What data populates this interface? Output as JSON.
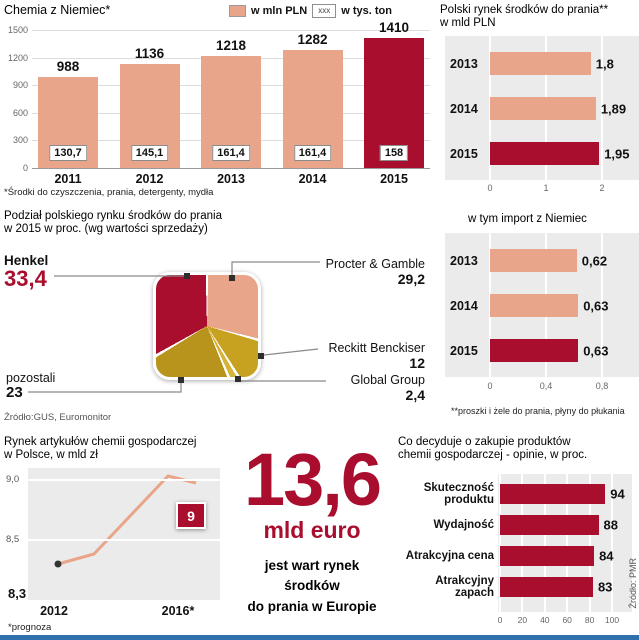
{
  "colors": {
    "salmon": "#e9a58a",
    "crimson": "#a90e2e",
    "gold": "#c7a120",
    "gold_light": "#d6b33a",
    "gold_dark": "#b8941c",
    "panel": "#ebebeb",
    "accent_blue": "#2e6fac"
  },
  "chart_data": [
    {
      "id": "german-chemicals",
      "type": "bar",
      "title": "Chemia z Niemiec*",
      "legend": [
        {
          "label": "w mln PLN",
          "swatch": "salmon"
        },
        {
          "label": "w tys. ton",
          "swatch_text": "xxx"
        }
      ],
      "categories": [
        "2011",
        "2012",
        "2013",
        "2014",
        "2015"
      ],
      "series": [
        {
          "name": "w mln PLN",
          "values": [
            988,
            1136,
            1218,
            1282,
            1410
          ],
          "labels": [
            "988",
            "1136",
            "1218",
            "1282",
            "1410"
          ]
        },
        {
          "name": "w tys. ton",
          "labels": [
            "130,7",
            "145,1",
            "161,4",
            "161,4",
            "158"
          ]
        }
      ],
      "ylim": [
        0,
        1500
      ],
      "yticks": [
        "1500",
        "1200",
        "900",
        "600",
        "300",
        "0"
      ],
      "highlight_last": true,
      "footnote": "*Środki do czyszczenia, prania, detergenty, mydła"
    },
    {
      "id": "polish-laundry-market",
      "type": "bar-horizontal",
      "title": "Polski rynek środków do prania**",
      "subtitle": "w mld PLN",
      "categories": [
        "2013",
        "2014",
        "2015"
      ],
      "values": [
        1.8,
        1.89,
        1.95
      ],
      "labels": [
        "1,8",
        "1,89",
        "1,95"
      ],
      "xlim": [
        0,
        2
      ],
      "xticks": [
        "0",
        "1",
        "2"
      ],
      "highlight_last": true
    },
    {
      "id": "import-from-germany",
      "type": "bar-horizontal",
      "title": "w tym import z Niemiec",
      "categories": [
        "2013",
        "2014",
        "2015"
      ],
      "values": [
        0.62,
        0.63,
        0.63
      ],
      "labels": [
        "0,62",
        "0,63",
        "0,63"
      ],
      "xlim": [
        0,
        0.8
      ],
      "xticks": [
        "0",
        "0,4",
        "0,8"
      ],
      "highlight_last": true,
      "footnote": "**proszki i żele do prania, płyny do płukania"
    },
    {
      "id": "laundry-market-share",
      "type": "pie",
      "title": "Podział polskiego rynku środków do prania",
      "subtitle": "w 2015 w proc. (wg wartości sprzedaży)",
      "slices": [
        {
          "name": "Henkel",
          "value": 33.4,
          "label": "33,4",
          "color": "crimson"
        },
        {
          "name": "Procter & Gamble",
          "value": 29.2,
          "label": "29,2",
          "color": "salmon"
        },
        {
          "name": "Reckitt Benckiser",
          "value": 12,
          "label": "12",
          "color": "gold"
        },
        {
          "name": "Global Group",
          "value": 2.4,
          "label": "2,4",
          "color": "gold_light"
        },
        {
          "name": "pozostali",
          "value": 23,
          "label": "23",
          "color": "gold_dark"
        }
      ],
      "draw_order": [
        1,
        2,
        3,
        4,
        0
      ],
      "source": "Źródło:GUS, Euromonitor"
    },
    {
      "id": "household-chemicals-market",
      "type": "line",
      "title": "Rynek artykułów chemii gospodarczej",
      "subtitle": "w Polsce, w mld zł",
      "x": [
        "2012",
        "2016*"
      ],
      "values": [
        8.3,
        9
      ],
      "point_labels": [
        "8,3",
        "9"
      ],
      "yticks": [
        "9,0",
        "8,5"
      ],
      "ylim": [
        8.0,
        9.0
      ],
      "footnote": "*prognoza"
    },
    {
      "id": "purchase-decision-factors",
      "type": "bar-horizontal",
      "title": "Co decyduje o zakupie produktów",
      "subtitle": "chemii gospodarczej - opinie, w proc.",
      "categories": [
        "Skuteczność produktu",
        "Wydajność",
        "Atrakcyjna cena",
        "Atrakcyjny zapach"
      ],
      "values": [
        94,
        88,
        84,
        83
      ],
      "labels": [
        "94",
        "88",
        "84",
        "83"
      ],
      "xlim": [
        0,
        100
      ],
      "xticks": [
        "0",
        "20",
        "40",
        "60",
        "80",
        "100"
      ],
      "source": "Źródło: PMR"
    }
  ],
  "big_stat": {
    "number": "13,6",
    "unit": "mld euro",
    "caption": [
      "jest wart rynek",
      "środków",
      "do prania w Europie"
    ]
  }
}
